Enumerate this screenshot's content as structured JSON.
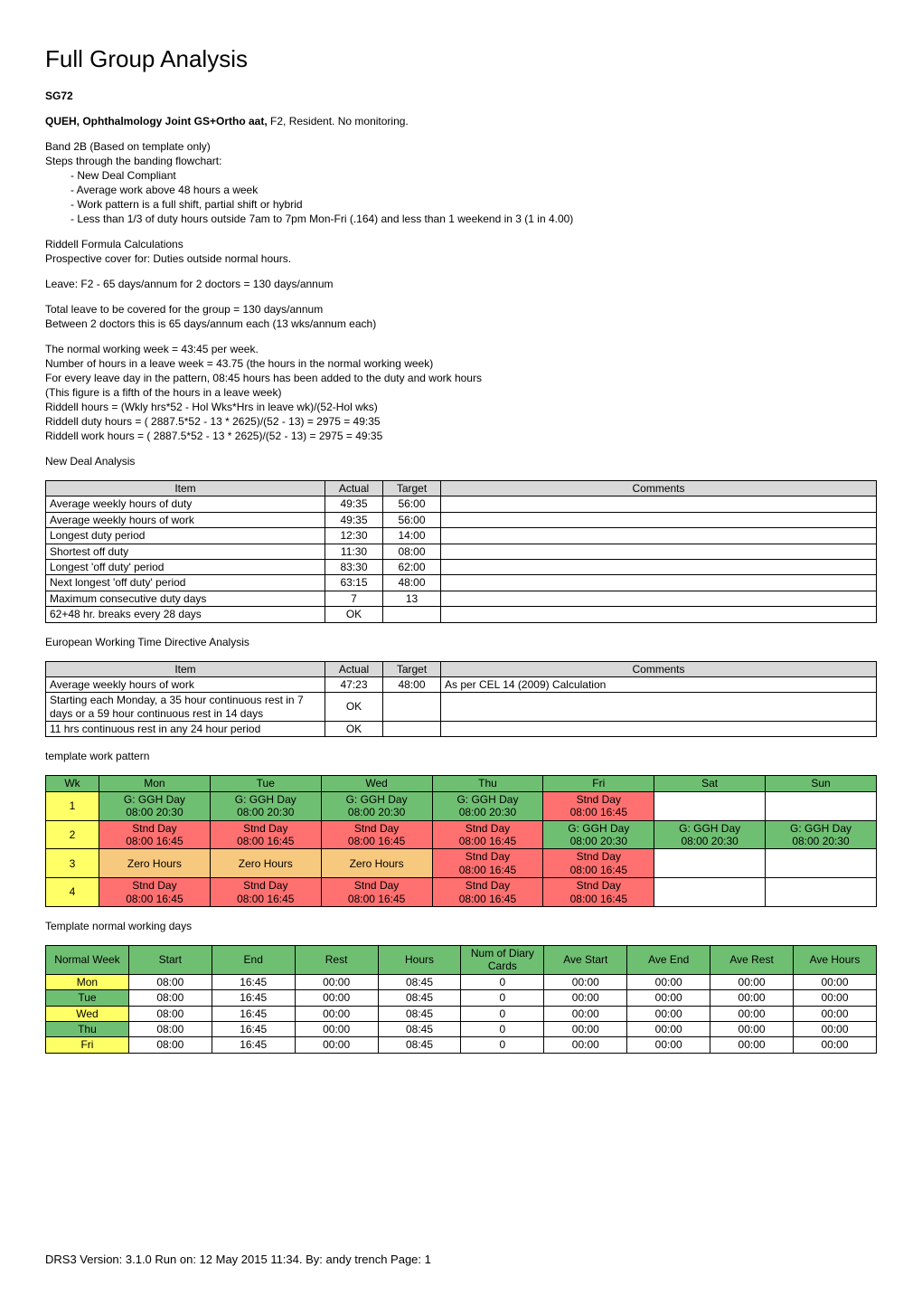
{
  "title": "Full Group Analysis",
  "code": "SG72",
  "header_bold": "QUEH, Ophthalmology Joint GS+Ortho aat,",
  "header_rest": " F2, Resident. No monitoring.",
  "band_line": "Band 2B (Based on template only)",
  "steps_intro": "Steps through the banding flowchart:",
  "steps": [
    "- New Deal Compliant",
    "- Average work above 48 hours a week",
    "- Work pattern is a full shift, partial shift or hybrid",
    "- Less than 1/3 of duty hours outside 7am to 7pm Mon-Fri (.164) and less than 1 weekend in 3 (1 in 4.00)"
  ],
  "riddell_title": "Riddell Formula Calculations",
  "prospective": "Prospective cover for: Duties outside normal hours.",
  "leave": "Leave: F2 - 65 days/annum for 2 doctors = 130 days/annum",
  "total_leave": "Total leave to be covered for the group = 130 days/annum",
  "between": "Between 2 doctors this is 65 days/annum each (13 wks/annum each)",
  "normal_week": "The normal working week = 43:45 per week.",
  "num_hours_leave": "Number of hours in a leave week = 43.75 (the hours in the normal working week)",
  "every_leave": "For every leave day in the pattern, 08:45 hours has been added to the duty and work hours",
  "fifth": "(This figure is a fifth of the hours in a leave week)",
  "riddell_hours": "Riddell hours = (Wkly hrs*52 - Hol Wks*Hrs in leave wk)/(52-Hol wks)",
  "riddell_duty": "Riddell duty hours = ( 2887.5*52 - 13 * 2625)/(52 - 13) =  2975 = 49:35",
  "riddell_work": "Riddell work hours = ( 2887.5*52 - 13 * 2625)/(52 - 13) =  2975 = 49:35",
  "nd_title": "New Deal Analysis",
  "nd_headers": [
    "Item",
    "Actual",
    "Target",
    "Comments"
  ],
  "nd_rows": [
    [
      "Average weekly hours of duty",
      "49:35",
      "56:00",
      ""
    ],
    [
      "Average weekly hours of work",
      "49:35",
      "56:00",
      ""
    ],
    [
      "Longest duty period",
      "12:30",
      "14:00",
      ""
    ],
    [
      "Shortest off duty",
      "11:30",
      "08:00",
      ""
    ],
    [
      "Longest 'off duty' period",
      "83:30",
      "62:00",
      ""
    ],
    [
      "Next longest 'off duty' period",
      "63:15",
      "48:00",
      ""
    ],
    [
      "Maximum consecutive duty days",
      "7",
      "13",
      ""
    ],
    [
      "62+48 hr. breaks every 28 days",
      "OK",
      "",
      ""
    ]
  ],
  "ewtd_title": "European Working Time Directive Analysis",
  "ewtd_headers": [
    "Item",
    "Actual",
    "Target",
    "Comments"
  ],
  "ewtd_rows": [
    [
      "Average weekly hours of work",
      "47:23",
      "48:00",
      "As per CEL 14 (2009) Calculation"
    ],
    [
      "Starting each Monday, a 35 hour continuous rest in 7 days or a 59 hour continuous rest in 14 days",
      "OK",
      "",
      ""
    ],
    [
      "11 hrs continuous rest in any 24 hour period",
      "OK",
      "",
      ""
    ]
  ],
  "pattern_title": "template work pattern",
  "pattern_headers": [
    "Wk",
    "Mon",
    "Tue",
    "Wed",
    "Thu",
    "Fri",
    "Sat",
    "Sun"
  ],
  "pattern_rows": [
    {
      "wk": "1",
      "wk_color": "cell-yellow",
      "cells": [
        {
          "l1": "G: GGH Day",
          "l2": "08:00 20:30",
          "c": "cell-green"
        },
        {
          "l1": "G: GGH Day",
          "l2": "08:00 20:30",
          "c": "cell-green"
        },
        {
          "l1": "G: GGH Day",
          "l2": "08:00 20:30",
          "c": "cell-green"
        },
        {
          "l1": "G: GGH Day",
          "l2": "08:00 20:30",
          "c": "cell-green"
        },
        {
          "l1": "Stnd Day",
          "l2": "08:00 16:45",
          "c": "cell-red"
        },
        {
          "l1": "",
          "l2": "",
          "c": ""
        },
        {
          "l1": "",
          "l2": "",
          "c": ""
        }
      ]
    },
    {
      "wk": "2",
      "wk_color": "cell-yellow",
      "cells": [
        {
          "l1": "Stnd Day",
          "l2": "08:00 16:45",
          "c": "cell-red"
        },
        {
          "l1": "Stnd Day",
          "l2": "08:00 16:45",
          "c": "cell-red"
        },
        {
          "l1": "Stnd Day",
          "l2": "08:00 16:45",
          "c": "cell-red"
        },
        {
          "l1": "Stnd Day",
          "l2": "08:00 16:45",
          "c": "cell-red"
        },
        {
          "l1": "G: GGH Day",
          "l2": "08:00 20:30",
          "c": "cell-green"
        },
        {
          "l1": "G: GGH Day",
          "l2": "08:00 20:30",
          "c": "cell-green"
        },
        {
          "l1": "G: GGH Day",
          "l2": "08:00 20:30",
          "c": "cell-green"
        }
      ]
    },
    {
      "wk": "3",
      "wk_color": "cell-yellow",
      "cells": [
        {
          "l1": "Zero Hours",
          "l2": "",
          "c": "cell-orange"
        },
        {
          "l1": "Zero Hours",
          "l2": "",
          "c": "cell-orange"
        },
        {
          "l1": "Zero Hours",
          "l2": "",
          "c": "cell-orange"
        },
        {
          "l1": "Stnd Day",
          "l2": "08:00 16:45",
          "c": "cell-red"
        },
        {
          "l1": "Stnd Day",
          "l2": "08:00 16:45",
          "c": "cell-red"
        },
        {
          "l1": "",
          "l2": "",
          "c": ""
        },
        {
          "l1": "",
          "l2": "",
          "c": ""
        }
      ]
    },
    {
      "wk": "4",
      "wk_color": "cell-yellow",
      "cells": [
        {
          "l1": "Stnd Day",
          "l2": "08:00 16:45",
          "c": "cell-red"
        },
        {
          "l1": "Stnd Day",
          "l2": "08:00 16:45",
          "c": "cell-red"
        },
        {
          "l1": "Stnd Day",
          "l2": "08:00 16:45",
          "c": "cell-red"
        },
        {
          "l1": "Stnd Day",
          "l2": "08:00 16:45",
          "c": "cell-red"
        },
        {
          "l1": "Stnd Day",
          "l2": "08:00 16:45",
          "c": "cell-red"
        },
        {
          "l1": "",
          "l2": "",
          "c": ""
        },
        {
          "l1": "",
          "l2": "",
          "c": ""
        }
      ]
    }
  ],
  "nw_title": "Template normal working days",
  "nw_headers": [
    "Normal Week",
    "Start",
    "End",
    "Rest",
    "Hours",
    "Num of Diary Cards",
    "Ave Start",
    "Ave End",
    "Ave Rest",
    "Ave Hours"
  ],
  "nw_rows": [
    {
      "day": "Mon",
      "c": "cell-yellow",
      "vals": [
        "08:00",
        "16:45",
        "00:00",
        "08:45",
        "0",
        "00:00",
        "00:00",
        "00:00",
        "00:00"
      ]
    },
    {
      "day": "Tue",
      "c": "cell-green",
      "vals": [
        "08:00",
        "16:45",
        "00:00",
        "08:45",
        "0",
        "00:00",
        "00:00",
        "00:00",
        "00:00"
      ]
    },
    {
      "day": "Wed",
      "c": "cell-yellow",
      "vals": [
        "08:00",
        "16:45",
        "00:00",
        "08:45",
        "0",
        "00:00",
        "00:00",
        "00:00",
        "00:00"
      ]
    },
    {
      "day": "Thu",
      "c": "cell-green",
      "vals": [
        "08:00",
        "16:45",
        "00:00",
        "08:45",
        "0",
        "00:00",
        "00:00",
        "00:00",
        "00:00"
      ]
    },
    {
      "day": "Fri",
      "c": "cell-yellow",
      "vals": [
        "08:00",
        "16:45",
        "00:00",
        "08:45",
        "0",
        "00:00",
        "00:00",
        "00:00",
        "00:00"
      ]
    }
  ],
  "footer": "DRS3 Version: 3.1.0  Run on: 12 May 2015 11:34. By: andy trench  Page: 1"
}
